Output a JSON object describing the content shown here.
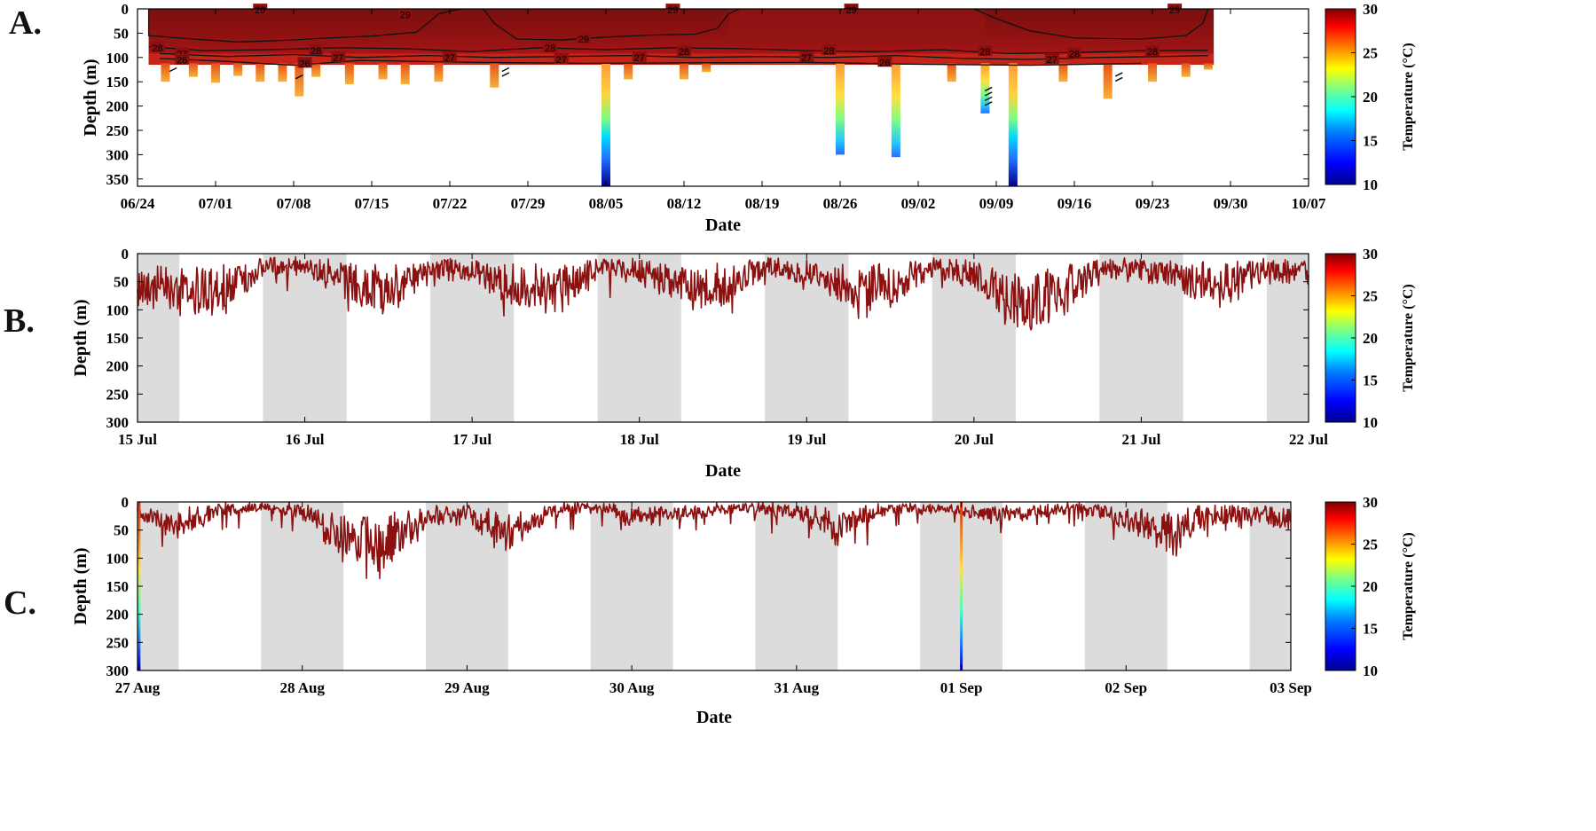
{
  "colors": {
    "night_shade": "#dcdcdc",
    "trace_main": "#8b1111",
    "contour": "#111111",
    "axis": "#000000",
    "colormap": [
      "#00008f",
      "#0000ff",
      "#0080ff",
      "#00ffff",
      "#80ff80",
      "#ffff00",
      "#ff8000",
      "#ff0000",
      "#800000"
    ]
  },
  "panels": {
    "a": {
      "letter": "A."
    },
    "b": {
      "letter": "B."
    },
    "c": {
      "letter": "C."
    }
  },
  "chart_data": [
    {
      "id": "a",
      "type": "heatmap",
      "xlabel": "Date",
      "ylabel": "Depth (m)",
      "ylim": [
        0,
        365
      ],
      "yticks": [
        0,
        50,
        100,
        150,
        200,
        250,
        300,
        350
      ],
      "xticks": [
        "06/24",
        "07/01",
        "07/08",
        "07/15",
        "07/22",
        "07/29",
        "08/05",
        "08/12",
        "08/19",
        "08/26",
        "09/02",
        "09/09",
        "09/16",
        "09/23",
        "09/30",
        "10/07"
      ],
      "xlim_days": [
        0,
        105
      ],
      "colorbar": {
        "label": "Temperature (°C)",
        "range": [
          10,
          30
        ],
        "ticks": [
          10,
          15,
          20,
          25,
          30
        ]
      },
      "profile_depths": [
        {
          "day": 2.5,
          "max_depth": 150
        },
        {
          "day": 5,
          "max_depth": 140
        },
        {
          "day": 7,
          "max_depth": 152
        },
        {
          "day": 9,
          "max_depth": 138
        },
        {
          "day": 11,
          "max_depth": 150
        },
        {
          "day": 13,
          "max_depth": 150
        },
        {
          "day": 14.5,
          "max_depth": 180
        },
        {
          "day": 16,
          "max_depth": 140
        },
        {
          "day": 19,
          "max_depth": 155
        },
        {
          "day": 22,
          "max_depth": 145
        },
        {
          "day": 24,
          "max_depth": 155
        },
        {
          "day": 27,
          "max_depth": 150
        },
        {
          "day": 32,
          "max_depth": 162
        },
        {
          "day": 42,
          "max_depth": 365
        },
        {
          "day": 44,
          "max_depth": 145
        },
        {
          "day": 49,
          "max_depth": 145
        },
        {
          "day": 51,
          "max_depth": 130
        },
        {
          "day": 63,
          "max_depth": 300
        },
        {
          "day": 68,
          "max_depth": 305
        },
        {
          "day": 73,
          "max_depth": 150
        },
        {
          "day": 76,
          "max_depth": 215
        },
        {
          "day": 78.5,
          "max_depth": 365
        },
        {
          "day": 83,
          "max_depth": 150
        },
        {
          "day": 87,
          "max_depth": 185
        },
        {
          "day": 91,
          "max_depth": 150
        },
        {
          "day": 94,
          "max_depth": 140
        },
        {
          "day": 96,
          "max_depth": 125
        }
      ],
      "contour_labels": [
        "29",
        "29",
        "29",
        "29",
        "29",
        "29",
        "28",
        "28",
        "28",
        "28",
        "28",
        "28",
        "28",
        "28",
        "27",
        "27",
        "27",
        "27",
        "27",
        "27",
        "27",
        "26",
        "26",
        "26"
      ]
    },
    {
      "id": "b",
      "type": "line",
      "xlabel": "Date",
      "ylabel": "Depth (m)",
      "ylim": [
        0,
        300
      ],
      "yticks": [
        0,
        50,
        100,
        150,
        200,
        250,
        300
      ],
      "xticks": [
        "15 Jul",
        "16 Jul",
        "17 Jul",
        "18 Jul",
        "19 Jul",
        "20 Jul",
        "21 Jul",
        "22 Jul"
      ],
      "xlim_days": [
        0,
        7
      ],
      "night_bands_days": [
        [
          0,
          0.25
        ],
        [
          0.75,
          1.25
        ],
        [
          1.75,
          2.25
        ],
        [
          2.75,
          3.25
        ],
        [
          3.75,
          4.25
        ],
        [
          4.75,
          5.25
        ],
        [
          5.75,
          6.25
        ],
        [
          6.75,
          7
        ]
      ],
      "colorbar": {
        "label": "Temperature (°C)",
        "range": [
          10,
          30
        ],
        "ticks": [
          10,
          15,
          20,
          25,
          30
        ]
      },
      "depth_trace": {
        "x_days": [
          0,
          0.25,
          0.5,
          0.75,
          1,
          1.25,
          1.5,
          1.75,
          2,
          2.25,
          2.5,
          2.75,
          3,
          3.25,
          3.5,
          3.75,
          4,
          4.25,
          4.5,
          4.75,
          5,
          5.25,
          5.5,
          5.75,
          6,
          6.25,
          6.5,
          6.75,
          7
        ],
        "mean_depth": [
          55,
          60,
          70,
          25,
          20,
          55,
          65,
          25,
          30,
          60,
          70,
          25,
          30,
          55,
          60,
          25,
          30,
          55,
          60,
          25,
          35,
          85,
          75,
          25,
          25,
          45,
          50,
          30,
          30
        ],
        "spikes": [
          {
            "day": 0.45,
            "depth": 135
          },
          {
            "day": 2.45,
            "depth": 148
          },
          {
            "day": 3.0,
            "depth": 118
          },
          {
            "day": 4.4,
            "depth": 155
          },
          {
            "day": 5.05,
            "depth": 160
          },
          {
            "day": 5.4,
            "depth": 162
          },
          {
            "day": 6.3,
            "depth": 108
          }
        ]
      }
    },
    {
      "id": "c",
      "type": "line",
      "xlabel": "Date",
      "ylabel": "Depth (m)",
      "ylim": [
        0,
        300
      ],
      "yticks": [
        0,
        50,
        100,
        150,
        200,
        250,
        300
      ],
      "xticks": [
        "27 Aug",
        "28 Aug",
        "29 Aug",
        "30 Aug",
        "31 Aug",
        "01 Sep",
        "02 Sep",
        "03 Sep"
      ],
      "xlim_days": [
        0,
        7
      ],
      "night_bands_days": [
        [
          0,
          0.25
        ],
        [
          0.75,
          1.25
        ],
        [
          1.75,
          2.25
        ],
        [
          2.75,
          3.25
        ],
        [
          3.75,
          4.25
        ],
        [
          4.75,
          5.25
        ],
        [
          5.75,
          6.25
        ],
        [
          6.75,
          7
        ]
      ],
      "colorbar": {
        "label": "Temperature (°C)",
        "range": [
          10,
          30
        ],
        "ticks": [
          10,
          15,
          20,
          25,
          30
        ]
      },
      "deep_dives": [
        {
          "day": 0.01,
          "depth": 300
        },
        {
          "day": 5.0,
          "depth": 300
        }
      ],
      "depth_trace": {
        "x_days": [
          0,
          0.25,
          0.5,
          0.75,
          1,
          1.25,
          1.5,
          1.75,
          2,
          2.25,
          2.5,
          2.75,
          3,
          3.25,
          3.5,
          3.75,
          4,
          4.25,
          4.5,
          4.75,
          5,
          5.25,
          5.5,
          5.75,
          6,
          6.25,
          6.5,
          6.75,
          7
        ],
        "mean_depth": [
          20,
          40,
          15,
          10,
          15,
          65,
          75,
          25,
          25,
          55,
          15,
          10,
          25,
          20,
          15,
          10,
          20,
          45,
          15,
          10,
          15,
          20,
          15,
          10,
          30,
          55,
          25,
          20,
          30
        ],
        "spikes": [
          {
            "day": 0.2,
            "depth": 118
          },
          {
            "day": 1.0,
            "depth": 112
          },
          {
            "day": 2.0,
            "depth": 118
          },
          {
            "day": 4.3,
            "depth": 120
          },
          {
            "day": 5.3,
            "depth": 95
          },
          {
            "day": 6.5,
            "depth": 128
          }
        ]
      }
    }
  ]
}
